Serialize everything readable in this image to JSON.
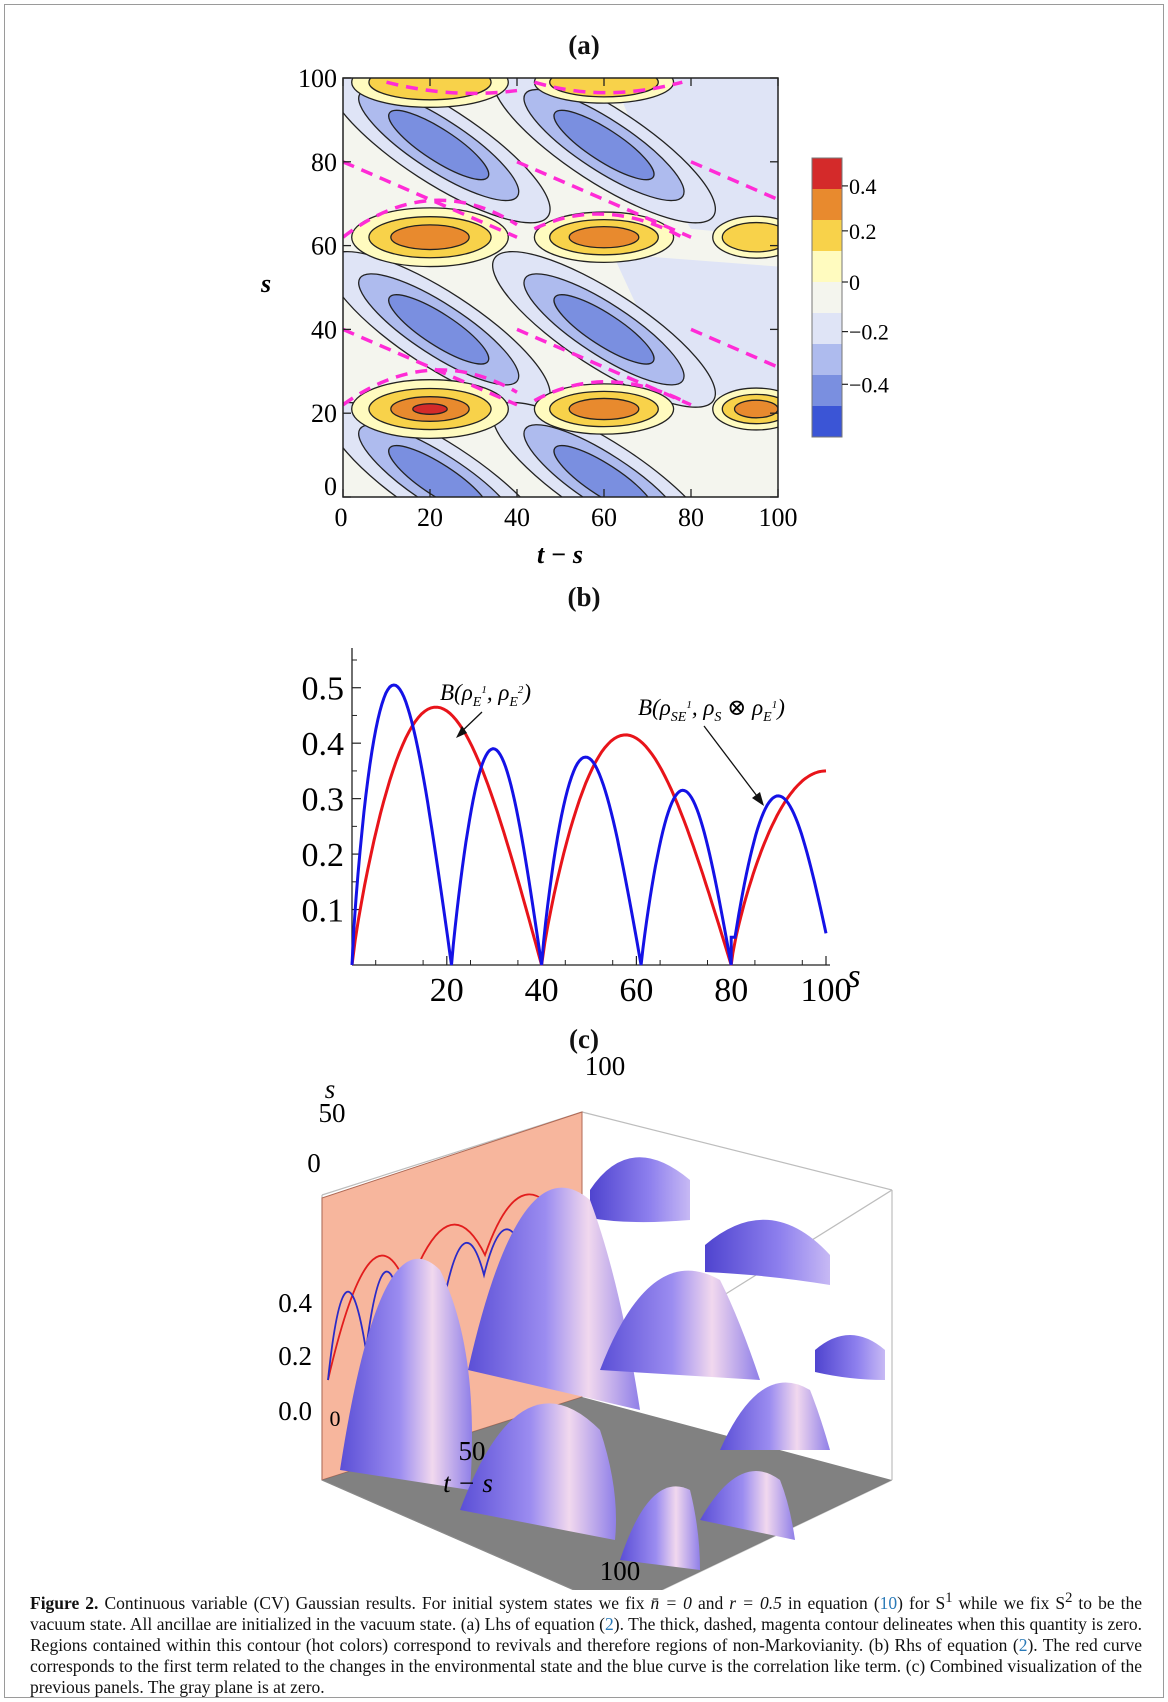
{
  "figure": {
    "panels": {
      "a": "(a)",
      "b": "(b)",
      "c": "(c)"
    }
  },
  "panel_a": {
    "x_label": "t − s",
    "y_label": "s",
    "x_ticks": [
      "0",
      "20",
      "40",
      "60",
      "80",
      "100"
    ],
    "y_ticks": [
      "0",
      "20",
      "40",
      "60",
      "80",
      "100"
    ],
    "colorbar_ticks": [
      "0.4",
      "0.2",
      "0",
      "−0.2",
      "−0.4"
    ],
    "colors": {
      "zero_contour": "#ff2bd6",
      "hot_1": "#fffbbf",
      "hot_2": "#f8d24a",
      "hot_3": "#e88a2e",
      "hot_4": "#d42a2a",
      "cold_1": "#dfe4f6",
      "cold_2": "#aebbee",
      "cold_3": "#7a8fe0",
      "cold_4": "#3b55d6"
    }
  },
  "panel_b": {
    "x_label": "s",
    "y_ticks": [
      "0.5",
      "0.4",
      "0.3",
      "0.2",
      "0.1"
    ],
    "x_ticks": [
      "20",
      "40",
      "60",
      "80",
      "100"
    ],
    "label_red_main": "B(ρ",
    "label_red_sub1": "E",
    "label_red_sup1": "1",
    "label_red_mid": ", ρ",
    "label_red_sub2": "E",
    "label_red_sup2": "2",
    "label_red_end": ")",
    "label_blue_main": "B(ρ",
    "label_blue_sub1": "SE",
    "label_blue_sup1": "1",
    "label_blue_mid": ", ρ",
    "label_blue_sub2": "S",
    "label_blue_otimes": " ⊗ ρ",
    "label_blue_sub3": "E",
    "label_blue_sup3": "1",
    "label_blue_end": ")",
    "colors": {
      "red": "#e8141a",
      "blue": "#1412e6"
    }
  },
  "panel_c": {
    "s_label": "s",
    "s_ticks": [
      "100",
      "50",
      "0"
    ],
    "z_ticks": [
      "0.4",
      "0.2",
      "0.0"
    ],
    "origin_tick": "0",
    "t_label": "t − s",
    "t_ticks": [
      "50",
      "100"
    ]
  },
  "chart_data": [
    {
      "type": "heatmap",
      "xlabel": "t − s",
      "ylabel": "s",
      "xlim": [
        0,
        100
      ],
      "ylim": [
        0,
        100
      ],
      "colorbar": [
        -0.4,
        -0.2,
        0,
        0.2,
        0.4
      ]
    },
    {
      "type": "line",
      "xlabel": "s",
      "xlim": [
        0,
        100
      ],
      "ylim": [
        0,
        0.55
      ],
      "x": [
        0,
        5,
        10,
        15,
        20,
        25,
        30,
        35,
        40,
        45,
        50,
        55,
        60,
        65,
        70,
        75,
        80,
        85,
        90,
        95,
        100
      ],
      "series": [
        {
          "name": "B(ρE1, ρE2)",
          "values": [
            0.0,
            0.33,
            0.43,
            0.46,
            0.46,
            0.44,
            0.39,
            0.26,
            0.0,
            0.27,
            0.37,
            0.41,
            0.41,
            0.38,
            0.32,
            0.22,
            0.0,
            0.22,
            0.3,
            0.34,
            0.345
          ]
        },
        {
          "name": "B(ρSE1, ρS ⊗ ρE1)",
          "values": [
            0.0,
            0.38,
            0.5,
            0.38,
            0.0,
            0.29,
            0.39,
            0.29,
            0.0,
            0.28,
            0.37,
            0.28,
            0.0,
            0.24,
            0.31,
            0.24,
            0.0,
            0.23,
            0.3,
            0.23,
            0.05
          ]
        }
      ]
    }
  ],
  "caption": {
    "label": "Figure 2.",
    "text_1": " Continuous variable (CV) Gaussian results. For initial system states we fix ",
    "nbar": "n̄ = 0",
    "and": " and ",
    "rval": "r = 0.5",
    "text_2": " in equation (",
    "ref_10": "10",
    "text_3": ") for S",
    "sup_1": "1",
    "text_4": " while we fix S",
    "sup_2": "2",
    "text_5": " to be the vacuum state. All ancillae are initialized in the vacuum state. (a) Lhs of equation (",
    "ref_2a": "2",
    "text_6": "). The thick, dashed, magenta contour delineates when this quantity is zero. Regions contained within this contour (hot colors) correspond to revivals and therefore regions of non-Markovianity. (b) Rhs of equation (",
    "ref_2b": "2",
    "text_7": "). The red curve corresponds to the first term related to the changes in the environmental state and the blue curve is the correlation like term. (c) Combined visualization of the previous panels. The gray plane is at zero."
  }
}
